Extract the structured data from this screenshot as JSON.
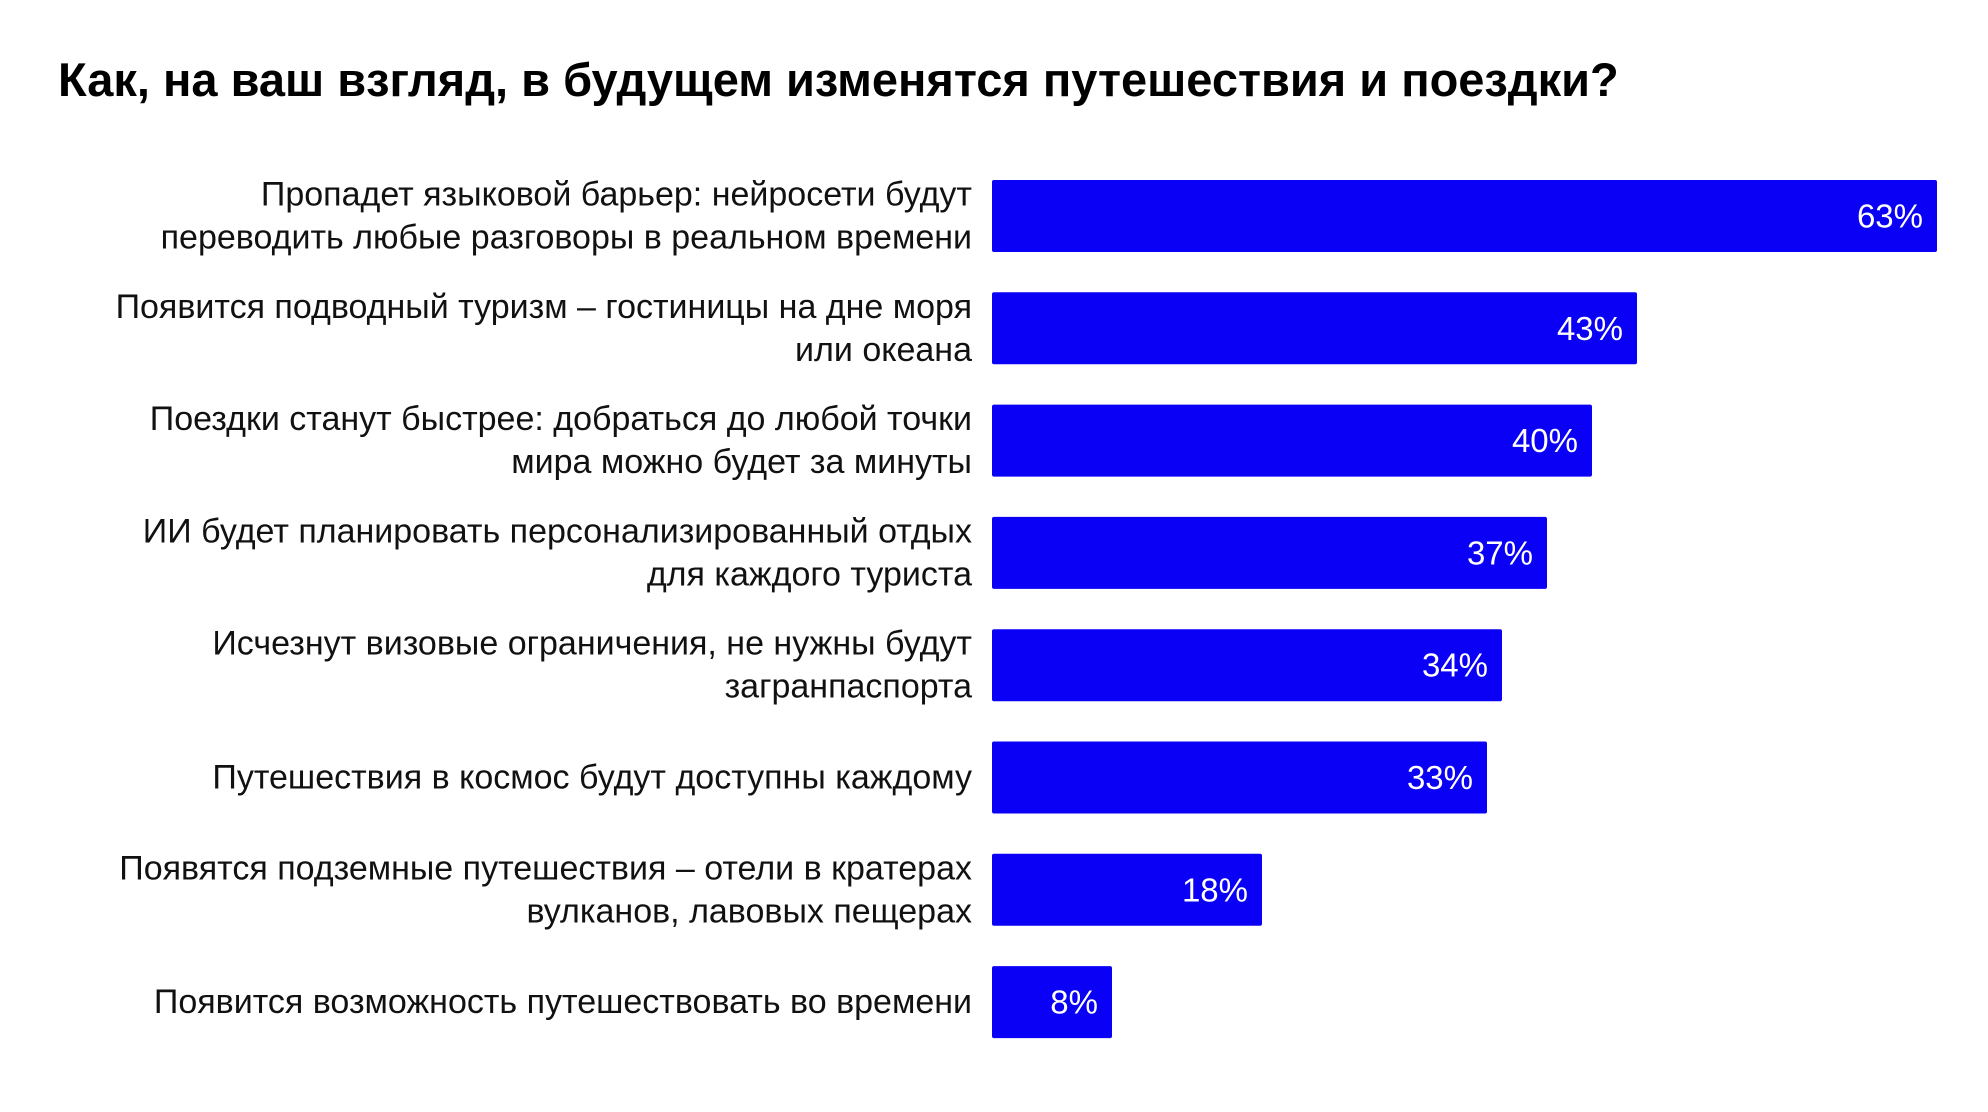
{
  "chart_data": {
    "type": "bar",
    "orientation": "horizontal",
    "title": "Как, на ваш взгляд, в будущем изменятся путешествия и поездки?",
    "categories": [
      [
        "Пропадет языковой барьер: нейросети будут",
        "переводить любые разговоры в реальном времени"
      ],
      [
        "Появится подводный туризм – гостиницы на дне моря",
        "или океана"
      ],
      [
        "Поездки станут быстрее: добраться до любой точки",
        "мира можно будет за минуты"
      ],
      [
        "ИИ будет планировать персонализированный отдых",
        "для каждого туриста"
      ],
      [
        "Исчезнут визовые ограничения, не нужны будут",
        "загранпаспорта"
      ],
      [
        "Путешествия в космос будут доступны каждому"
      ],
      [
        "Появятся подземные путешествия – отели в кратерах",
        "вулканов, лавовых пещерах"
      ],
      [
        "Появится возможность путешествовать во времени"
      ]
    ],
    "values": [
      63,
      43,
      40,
      37,
      34,
      33,
      18,
      8
    ],
    "value_labels": [
      "63%",
      "43%",
      "40%",
      "37%",
      "34%",
      "33%",
      "18%",
      "8%"
    ],
    "unit": "%",
    "bar_color": "#0a00f5",
    "value_label_color": "#ffffff",
    "grid": false,
    "legend": "none"
  }
}
